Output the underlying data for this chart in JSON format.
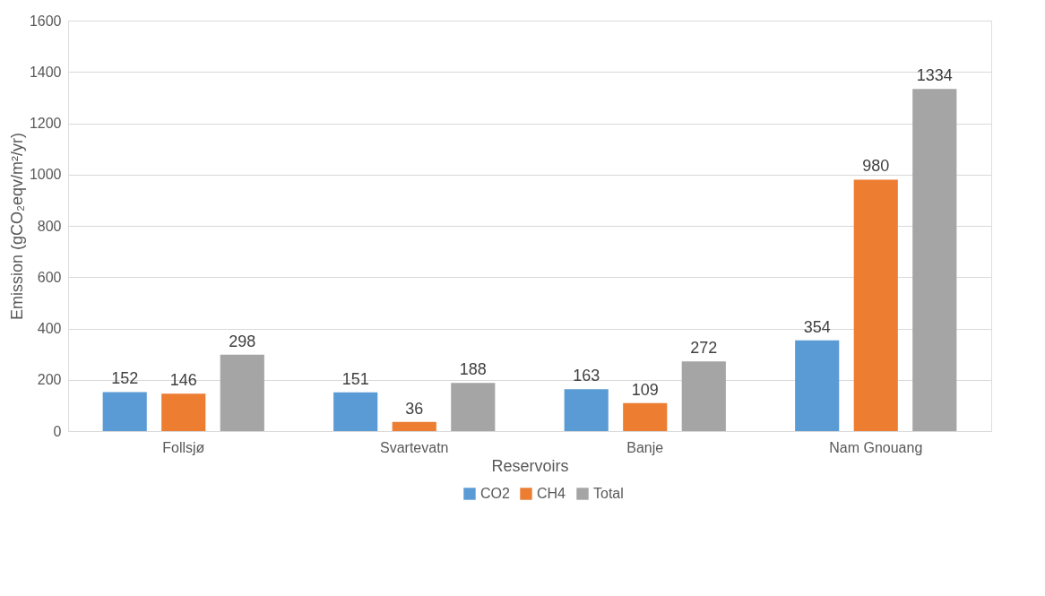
{
  "chart_data": {
    "type": "bar",
    "xlabel": "Reservoirs",
    "ylabel": "Emission (gCO₂eqv/m²/yr)",
    "categories": [
      "Follsjø",
      "Svartevatn",
      "Banje",
      "Nam Gnouang"
    ],
    "series": [
      {
        "name": "CO2",
        "color": "#5b9bd5",
        "values": [
          152,
          151,
          163,
          354
        ]
      },
      {
        "name": "CH4",
        "color": "#ed7d31",
        "values": [
          146,
          36,
          109,
          980
        ]
      },
      {
        "name": "Total",
        "color": "#a5a5a5",
        "values": [
          298,
          188,
          272,
          1334
        ]
      }
    ],
    "ylim": [
      0,
      1600
    ],
    "yticks": [
      0,
      200,
      400,
      600,
      800,
      1000,
      1200,
      1400,
      1600
    ],
    "grid": "y",
    "legend": "bottom",
    "data_labels": true
  }
}
